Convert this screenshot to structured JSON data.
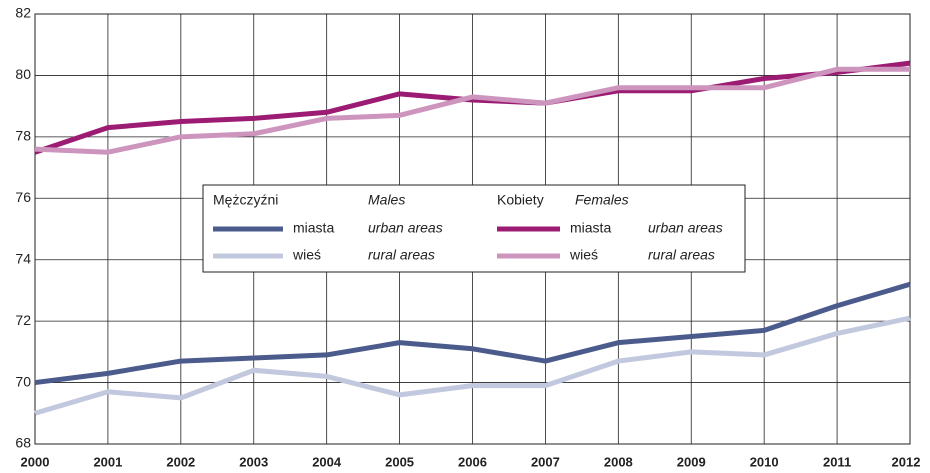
{
  "chart_data": {
    "type": "line",
    "x": [
      "2000",
      "2001",
      "2002",
      "2003",
      "2004",
      "2005",
      "2006",
      "2007",
      "2008",
      "2009",
      "2010",
      "2011",
      "2012"
    ],
    "ylim": [
      68,
      82
    ],
    "yticks": [
      68,
      70,
      72,
      74,
      76,
      78,
      80,
      82
    ],
    "grid": true,
    "legend_groups": [
      {
        "title": "Mężczyźni",
        "title_en": "Males"
      },
      {
        "title": "Kobiety",
        "title_en": "Females"
      }
    ],
    "series": [
      {
        "name": "miasta",
        "name_en": "urban areas",
        "color": "#4b5b8c",
        "values": [
          70.0,
          70.3,
          70.7,
          70.8,
          70.9,
          71.3,
          71.1,
          70.7,
          71.3,
          71.5,
          71.7,
          72.5,
          73.2
        ]
      },
      {
        "name": "wieś",
        "name_en": "rural areas",
        "color": "#c2c8dd",
        "values": [
          69.0,
          69.7,
          69.5,
          70.4,
          70.2,
          69.6,
          69.9,
          69.9,
          70.7,
          71.0,
          70.9,
          71.6,
          72.1
        ]
      },
      {
        "name": "miasta",
        "name_en": "urban areas",
        "color": "#9b1c72",
        "values": [
          77.5,
          78.3,
          78.5,
          78.6,
          78.8,
          79.4,
          79.2,
          79.1,
          79.5,
          79.5,
          79.9,
          80.1,
          80.4
        ]
      },
      {
        "name": "wieś",
        "name_en": "rural areas",
        "color": "#cd95bd",
        "values": [
          77.6,
          77.5,
          78.0,
          78.1,
          78.6,
          78.7,
          79.3,
          79.1,
          79.6,
          79.6,
          79.6,
          80.2,
          80.2
        ]
      }
    ]
  }
}
